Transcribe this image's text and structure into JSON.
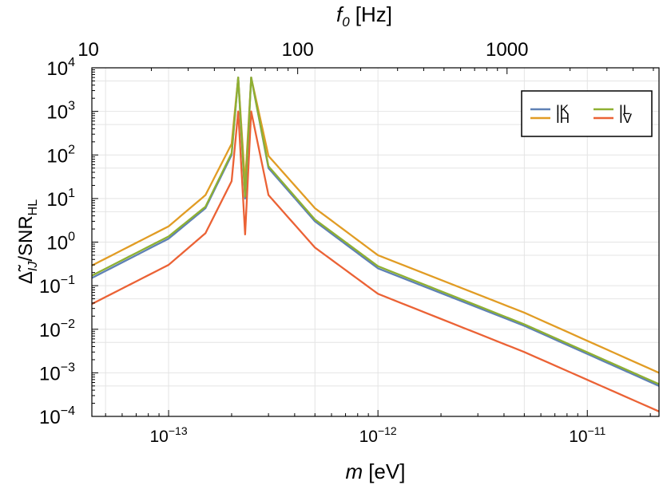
{
  "chart_data": {
    "type": "line",
    "scale": {
      "x": "log",
      "y": "log"
    },
    "xlabel_var": "m",
    "xlabel_unit": "[eV]",
    "top_xlabel_var": "f",
    "top_xlabel_sub": "0",
    "top_xlabel_unit": "[Hz]",
    "ylabel_main": "Δ̃",
    "ylabel_sub1": "IJ",
    "ylabel_mid": "/SNR",
    "ylabel_sub2": "HL",
    "xlim": [
      4.3e-14,
      2.2e-11
    ],
    "ylim": [
      0.0001,
      10000
    ],
    "x_ticks": [
      {
        "value": 1e-13,
        "base": "10",
        "exp": "−13"
      },
      {
        "value": 1e-12,
        "base": "10",
        "exp": "−12"
      },
      {
        "value": 1e-11,
        "base": "10",
        "exp": "−11"
      }
    ],
    "top_ticks": [
      {
        "value": 10,
        "label": "10"
      },
      {
        "value": 100,
        "label": "100"
      },
      {
        "value": 1000,
        "label": "1000"
      }
    ],
    "y_ticks": [
      {
        "value": 0.0001,
        "base": "10",
        "exp": "−4"
      },
      {
        "value": 0.001,
        "base": "10",
        "exp": "−3"
      },
      {
        "value": 0.01,
        "base": "10",
        "exp": "−2"
      },
      {
        "value": 0.1,
        "base": "10",
        "exp": "−1"
      },
      {
        "value": 1,
        "base": "10",
        "exp": "0"
      },
      {
        "value": 10,
        "base": "10",
        "exp": "1"
      },
      {
        "value": 100,
        "base": "10",
        "exp": "2"
      },
      {
        "value": 1000,
        "base": "10",
        "exp": "3"
      },
      {
        "value": 10000,
        "base": "10",
        "exp": "4"
      }
    ],
    "hz_per_ev": 241800000000000,
    "resonances": [
      2.15e-13,
      2.48e-13
    ],
    "dip_x": 2.32e-13,
    "grid": true,
    "legend_position": "top-right",
    "series": [
      {
        "name": "IK",
        "color": "#5e81b5",
        "x": [
          4.3e-14,
          1e-13,
          1.5e-13,
          2e-13,
          2.15e-13,
          2.32e-13,
          2.48e-13,
          3e-13,
          5e-13,
          1e-12,
          5e-12,
          2.2e-11
        ],
        "y": [
          0.15,
          1.2,
          6,
          100,
          6000,
          10,
          6000,
          50,
          3,
          0.25,
          0.012,
          0.0005
        ]
      },
      {
        "name": "IL",
        "color": "#8fb032",
        "x": [
          4.3e-14,
          1e-13,
          1.5e-13,
          2e-13,
          2.15e-13,
          2.32e-13,
          2.48e-13,
          3e-13,
          5e-13,
          1e-12,
          5e-12,
          2.2e-11
        ],
        "y": [
          0.17,
          1.35,
          6.5,
          110,
          6000,
          11,
          6000,
          55,
          3.3,
          0.28,
          0.013,
          0.00055
        ]
      },
      {
        "name": "IH",
        "color": "#e19c24",
        "x": [
          4.3e-14,
          1e-13,
          1.5e-13,
          2e-13,
          2.15e-13,
          2.32e-13,
          2.48e-13,
          3e-13,
          5e-13,
          1e-12,
          5e-12,
          2.2e-11
        ],
        "y": [
          0.29,
          2.3,
          12,
          180,
          6000,
          22,
          6000,
          95,
          6,
          0.5,
          0.024,
          0.001
        ]
      },
      {
        "name": "IV",
        "color": "#eb6235",
        "x": [
          4.3e-14,
          1e-13,
          1.5e-13,
          2e-13,
          2.15e-13,
          2.32e-13,
          2.48e-13,
          3e-13,
          5e-13,
          1e-12,
          5e-12,
          2.2e-11
        ],
        "y": [
          0.038,
          0.3,
          1.6,
          25,
          1000,
          1.5,
          1000,
          12,
          0.75,
          0.065,
          0.003,
          0.00013
        ]
      }
    ]
  }
}
